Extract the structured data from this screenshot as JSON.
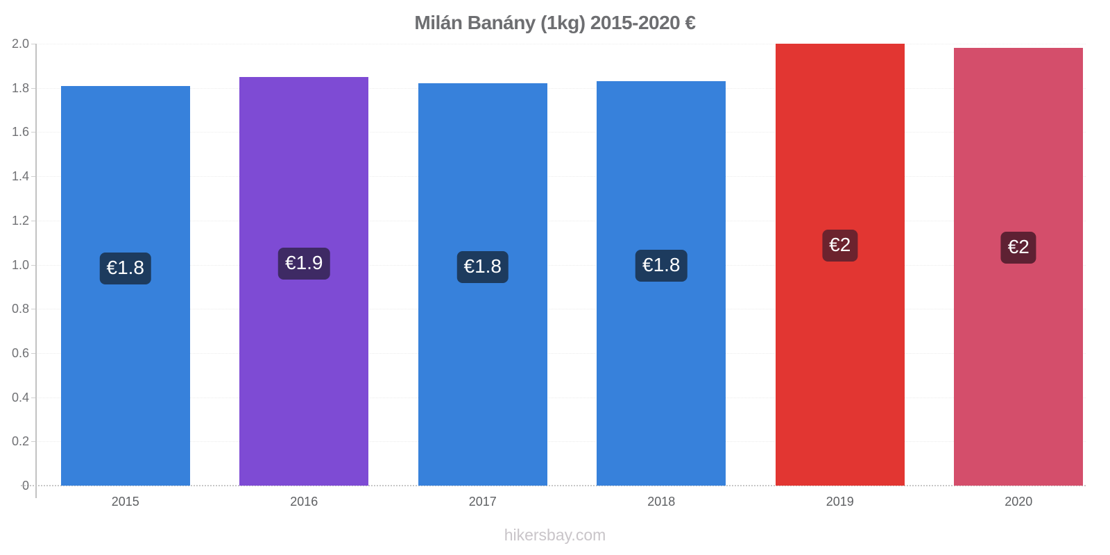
{
  "page": {
    "title": "Milán Banány (1kg) 2015-2020 €",
    "footer": "hikersbay.com"
  },
  "colors": {
    "title_text": "#6d6e71",
    "y_axis_text": "#707174",
    "x_axis_text": "#5e6063",
    "axis_line": "#c2c2c2",
    "gridline": "#ececec",
    "zero_line": "#c6c6c6",
    "badge_text": "#ffffff",
    "footer_text": "#c9c5c9"
  },
  "chart_data": {
    "type": "bar",
    "title": "Milán Banány (1kg) 2015-2020 €",
    "xlabel": "",
    "ylabel": "",
    "categories": [
      "2015",
      "2016",
      "2017",
      "2018",
      "2019",
      "2020"
    ],
    "values": [
      1.81,
      1.85,
      1.82,
      1.83,
      2.0,
      1.98
    ],
    "bar_labels": [
      "€1.8",
      "€1.9",
      "€1.8",
      "€1.8",
      "€2",
      "€2"
    ],
    "bar_colors": [
      "#3781db",
      "#7e4bd4",
      "#3781db",
      "#3781db",
      "#e23632",
      "#d44e6b"
    ],
    "badge_colors": [
      "#1d3b5e",
      "#3e2a64",
      "#1d3b5e",
      "#1d3b5e",
      "#6c232e",
      "#5e2133"
    ],
    "currency": "€",
    "ylim": [
      0,
      2
    ],
    "ytick_step": 0.2,
    "yticks": [
      0,
      0.2,
      0.4,
      0.6,
      0.8,
      1.0,
      1.2,
      1.4,
      1.6,
      1.8,
      2.0
    ],
    "ytick_labels": [
      "0",
      "0.2",
      "0.4",
      "0.6",
      "0.8",
      "1.0",
      "1.2",
      "1.4",
      "1.6",
      "1.8",
      "2.0"
    ],
    "grid": "horizontal-dotted",
    "legend_position": "none"
  }
}
